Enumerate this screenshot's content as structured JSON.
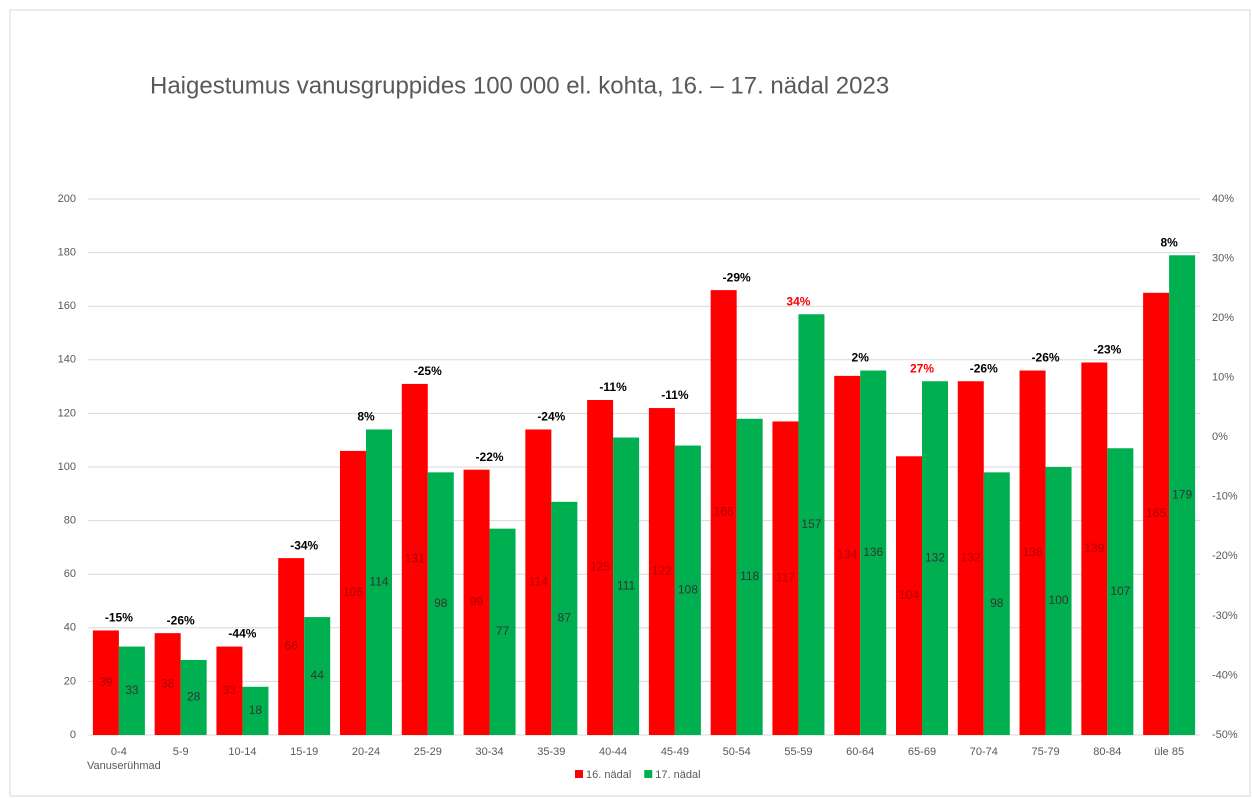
{
  "chart_data": {
    "type": "bar",
    "title": "Haigestumus vanusgruppides 100 000 el. kohta, 16. – 17. nädal 2023",
    "x_label": "Vanuserühmad",
    "categories": [
      "0-4",
      "5-9",
      "10-14",
      "15-19",
      "20-24",
      "25-29",
      "30-34",
      "35-39",
      "40-44",
      "45-49",
      "50-54",
      "55-59",
      "60-64",
      "65-69",
      "70-74",
      "75-79",
      "80-84",
      "üle 85"
    ],
    "series": [
      {
        "name": "16. nädal",
        "color": "#ff0000",
        "label_color": "#b00000",
        "values": [
          39,
          38,
          33,
          66,
          106,
          131,
          99,
          114,
          125,
          122,
          166,
          117,
          134,
          104,
          132,
          136,
          139,
          165
        ]
      },
      {
        "name": "17. nädal",
        "color": "#00b050",
        "label_color": "#333333",
        "values": [
          33,
          28,
          18,
          44,
          114,
          98,
          77,
          87,
          111,
          108,
          118,
          157,
          136,
          132,
          98,
          100,
          107,
          179
        ]
      }
    ],
    "change": {
      "values": [
        -15,
        -26,
        -44,
        -34,
        8,
        -25,
        -22,
        -24,
        -11,
        -11,
        -29,
        34,
        2,
        27,
        -26,
        -26,
        -23,
        8
      ],
      "value_labels": [
        "-15%",
        "-26%",
        "-44%",
        "-34%",
        "8%",
        "-25%",
        "-22%",
        "-24%",
        "-11%",
        "-11%",
        "-29%",
        "34%",
        "2%",
        "27%",
        "-26%",
        "-26%",
        "-23%",
        "8%"
      ],
      "colors": [
        "#000",
        "#000",
        "#000",
        "#000",
        "#000",
        "#000",
        "#000",
        "#000",
        "#000",
        "#000",
        "#000",
        "#ff0000",
        "#000",
        "#ff0000",
        "#000",
        "#000",
        "#000",
        "#000"
      ]
    },
    "ylim": [
      0,
      200
    ],
    "yticks": [
      0,
      20,
      40,
      60,
      80,
      100,
      120,
      140,
      160,
      180,
      200
    ],
    "y2lim": [
      -50,
      40
    ],
    "y2ticks": [
      {
        "value": -50,
        "label": "-50%"
      },
      {
        "value": -40,
        "label": "-40%"
      },
      {
        "value": -30,
        "label": "-30%"
      },
      {
        "value": -20,
        "label": "-20%"
      },
      {
        "value": -10,
        "label": "-10%"
      },
      {
        "value": 0,
        "label": "0%"
      },
      {
        "value": 10,
        "label": "10%"
      },
      {
        "value": 20,
        "label": "20%"
      },
      {
        "value": 30,
        "label": "30%"
      },
      {
        "value": 40,
        "label": "40%"
      }
    ],
    "grid": true,
    "legend": "bottom"
  }
}
